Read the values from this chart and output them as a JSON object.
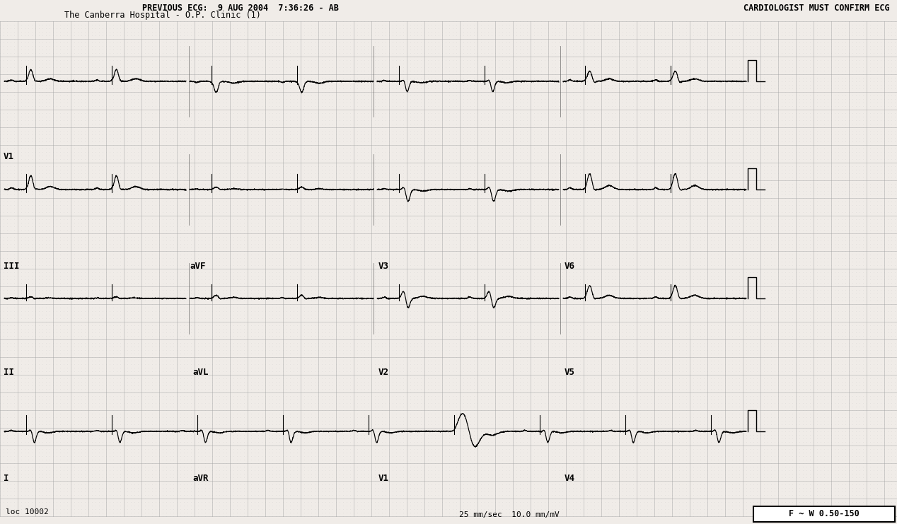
{
  "title_line1": "         PREVIOUS ECG:  9 AUG 2004  7:36:26 - AB",
  "title_line2": "The Canberra Hospital - O.P. Clinic (1)",
  "title_right": "CARDIOLOGIST MUST CONFIRM ECG",
  "bottom_left": "loc 10002",
  "bottom_center": "25 mm/sec  10.0 mm/mV",
  "bottom_right": "F ~ W 0.50-150",
  "bg_color": "#f0ece8",
  "grid_minor_color": "#bbbbbb",
  "grid_major_color": "#aaaaaa",
  "ecg_color": "#000000",
  "text_color": "#000000",
  "fig_width": 12.68,
  "fig_height": 7.41,
  "bpm": 62,
  "row1_labels": [
    [
      "I",
      5,
      670
    ],
    [
      "aVR",
      272,
      670
    ],
    [
      "V1",
      535,
      670
    ],
    [
      "V4",
      798,
      670
    ]
  ],
  "row2_labels": [
    [
      "II",
      5,
      520
    ],
    [
      "aVL",
      272,
      520
    ],
    [
      "V2",
      535,
      520
    ],
    [
      "V5",
      798,
      520
    ]
  ],
  "row3_labels": [
    [
      "III",
      5,
      370
    ],
    [
      "aVF",
      268,
      370
    ],
    [
      "V3",
      535,
      370
    ],
    [
      "V6",
      798,
      370
    ]
  ],
  "row4_labels": [
    [
      "V1",
      5,
      215
    ]
  ]
}
